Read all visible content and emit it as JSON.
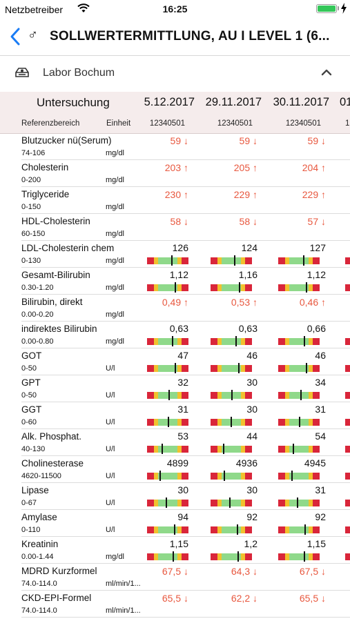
{
  "status": {
    "carrier": "Netzbetreiber",
    "time": "16:25"
  },
  "nav": {
    "title": "SOLLWERTERMITTLUNG, AU I LEVEL 1 (6...",
    "gender_symbol": "♂"
  },
  "section": {
    "label": "Labor Bochum"
  },
  "table": {
    "header_exam": "Untersuchung",
    "header_ref": "Referenzbereich",
    "header_unit": "Einheit",
    "columns": [
      {
        "date": "5.12.2017",
        "id": "12340501"
      },
      {
        "date": "29.11.2017",
        "id": "12340501"
      },
      {
        "date": "30.11.2017",
        "id": "12340501"
      },
      {
        "date": "01",
        "id": "1"
      }
    ],
    "colors": {
      "alert": "#e8573e",
      "gauge_red": "#d9263a",
      "gauge_yellow": "#f2c12e",
      "gauge_green": "#8fd98a"
    },
    "rows": [
      {
        "name": "Blutzucker nü(Serum)",
        "ref": "74-106",
        "unit": "mg/dl",
        "values": [
          "59 ↓",
          "59 ↓",
          "59 ↓"
        ],
        "alert": true
      },
      {
        "name": "Cholesterin",
        "ref": "0-200",
        "unit": "mg/dl",
        "values": [
          "203 ↑",
          "205 ↑",
          "204 ↑"
        ],
        "alert": true
      },
      {
        "name": "Triglyceride",
        "ref": "0-150",
        "unit": "mg/dl",
        "values": [
          "230 ↑",
          "229 ↑",
          "229 ↑"
        ],
        "alert": true
      },
      {
        "name": "HDL-Cholesterin",
        "ref": "60-150",
        "unit": "mg/dl",
        "values": [
          "58 ↓",
          "58 ↓",
          "57 ↓"
        ],
        "alert": true
      },
      {
        "name": "LDL-Cholesterin chem",
        "ref": "0-130",
        "unit": "mg/dl",
        "values": [
          "126",
          "124",
          "127"
        ],
        "alert": false,
        "levels": [
          0.72,
          0.68,
          0.74
        ]
      },
      {
        "name": "Gesamt-Bilirubin",
        "ref": "0.30-1.20",
        "unit": "mg/dl",
        "values": [
          "1,12",
          "1,16",
          "1,12"
        ],
        "alert": false,
        "levels": [
          0.88,
          0.92,
          0.88
        ]
      },
      {
        "name": "Bilirubin, direkt",
        "ref": "0.00-0.20",
        "unit": "mg/dl",
        "values": [
          "0,49 ↑",
          "0,53 ↑",
          "0,46 ↑"
        ],
        "alert": true
      },
      {
        "name": "indirektes Bilirubin",
        "ref": "0.00-0.80",
        "unit": "mg/dl",
        "values": [
          "0,63",
          "0,63",
          "0,66"
        ],
        "alert": false,
        "levels": [
          0.76,
          0.76,
          0.8
        ]
      },
      {
        "name": "GOT",
        "ref": "0-50",
        "unit": "U/l",
        "values": [
          "47",
          "46",
          "46"
        ],
        "alert": false,
        "levels": [
          0.9,
          0.88,
          0.88
        ]
      },
      {
        "name": "GPT",
        "ref": "0-50",
        "unit": "U/l",
        "values": [
          "32",
          "30",
          "34"
        ],
        "alert": false,
        "levels": [
          0.58,
          0.54,
          0.62
        ]
      },
      {
        "name": "GGT",
        "ref": "0-60",
        "unit": "U/l",
        "values": [
          "31",
          "30",
          "31"
        ],
        "alert": false,
        "levels": [
          0.52,
          0.5,
          0.52
        ]
      },
      {
        "name": "Alk. Phosphat.",
        "ref": "40-130",
        "unit": "U/l",
        "values": [
          "53",
          "44",
          "54"
        ],
        "alert": false,
        "levels": [
          0.2,
          0.1,
          0.22
        ]
      },
      {
        "name": "Cholinesterase",
        "ref": "4620-11500",
        "unit": "U/l",
        "values": [
          "4899",
          "4936",
          "4945"
        ],
        "alert": false,
        "levels": [
          0.12,
          0.14,
          0.14
        ]
      },
      {
        "name": "Lipase",
        "ref": "0-67",
        "unit": "U/l",
        "values": [
          "30",
          "30",
          "31"
        ],
        "alert": false,
        "levels": [
          0.42,
          0.42,
          0.44
        ]
      },
      {
        "name": "Amylase",
        "ref": "0-110",
        "unit": "U/l",
        "values": [
          "94",
          "92",
          "92"
        ],
        "alert": false,
        "levels": [
          0.84,
          0.82,
          0.82
        ]
      },
      {
        "name": "Kreatinin",
        "ref": "0.00-1.44",
        "unit": "mg/dl",
        "values": [
          "1,15",
          "1,2",
          "1,15"
        ],
        "alert": false,
        "levels": [
          0.8,
          0.84,
          0.8
        ]
      },
      {
        "name": "MDRD Kurzformel",
        "ref": "74.0-114.0",
        "unit": "ml/min/1...",
        "values": [
          "67,5 ↓",
          "64,3 ↓",
          "67,5 ↓"
        ],
        "alert": true
      },
      {
        "name": "CKD-EPI-Formel",
        "ref": "74.0-114.0",
        "unit": "ml/min/1...",
        "values": [
          "65,5 ↓",
          "62,2 ↓",
          "65,5 ↓"
        ],
        "alert": true
      }
    ]
  }
}
